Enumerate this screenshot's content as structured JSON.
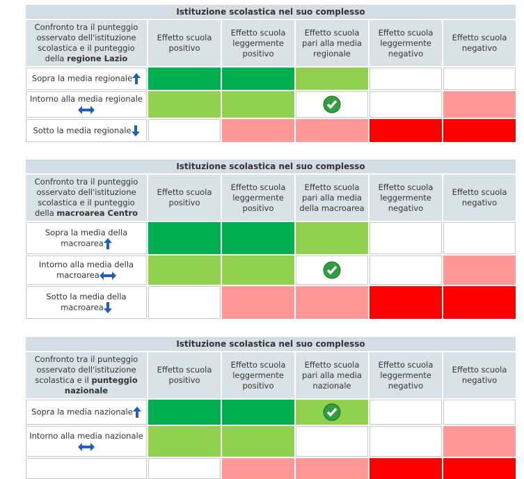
{
  "tables": [
    {
      "title": "Istituzione scolastica nel suo complesso",
      "corner": {
        "text": "Confronto tra il punteggio osservato dell'istituzione scolastica e il punteggio della",
        "bold": "regione Lazio"
      },
      "columns": [
        "Effetto scuola positivo",
        "Effetto scuola leggermente positivo",
        "Effetto scuola pari alla media regionale",
        "Effetto scuola leggermente negativo",
        "Effetto scuola negativo"
      ],
      "rows": [
        {
          "label": "Sopra la media regionale",
          "cells": [
            "#00b050",
            "#00b050",
            "#92d050",
            "#ffffff",
            "#ffffff"
          ]
        },
        {
          "label": "Intorno alla media regionale",
          "cells": [
            "#92d050",
            "#92d050",
            "#ffffff",
            "#ffffff",
            "#ff9999"
          ],
          "check": 2
        },
        {
          "label": "Sotto la media regionale",
          "cells": [
            "#ffffff",
            "#ff9999",
            "#ff9999",
            "#ff0000",
            "#ff0000"
          ]
        }
      ]
    },
    {
      "title": "Istituzione scolastica nel suo complesso",
      "corner": {
        "text": "Confronto tra il punteggio osservato dell'istituzione scolastica e il punteggio della",
        "bold": "macroarea Centro"
      },
      "columns": [
        "Effetto scuola positivo",
        "Effetto scuola leggermente positivo",
        "Effetto scuola pari alla media della macroarea",
        "Effetto scuola leggermente negativo",
        "Effetto scuola negativo"
      ],
      "rows": [
        {
          "label": "Sopra la media della macroarea",
          "cells": [
            "#00b050",
            "#00b050",
            "#92d050",
            "#ffffff",
            "#ffffff"
          ]
        },
        {
          "label": "Intorno alla media della macroarea",
          "cells": [
            "#92d050",
            "#92d050",
            "#ffffff",
            "#ffffff",
            "#ff9999"
          ],
          "check": 2
        },
        {
          "label": "Sotto la media della macroarea",
          "cells": [
            "#ffffff",
            "#ff9999",
            "#ff9999",
            "#ff0000",
            "#ff0000"
          ]
        }
      ]
    },
    {
      "title": "Istituzione scolastica nel suo complesso",
      "corner": {
        "text": "Confronto tra il punteggio osservato dell'istituzione scolastica e il",
        "bold": "punteggio nazionale"
      },
      "columns": [
        "Effetto scuola positivo",
        "Effetto scuola leggermente positivo",
        "Effetto scuola pari alla media nazionale",
        "Effetto scuola leggermente negativo",
        "Effetto scuola negativo"
      ],
      "rows": [
        {
          "label": "Sopra la media nazionale",
          "cells": [
            "#00b050",
            "#00b050",
            "#92d050",
            "#ffffff",
            "#ffffff"
          ],
          "check": 2
        },
        {
          "label": "Intorno alla media nazionale",
          "cells": [
            "#92d050",
            "#92d050",
            "#ffffff",
            "#ffffff",
            "#ff9999"
          ]
        },
        {
          "label": null,
          "cells": [
            "#ffffff",
            "#ff9999",
            "#ff9999",
            "#ff0000",
            "#ff0000"
          ]
        }
      ]
    }
  ]
}
